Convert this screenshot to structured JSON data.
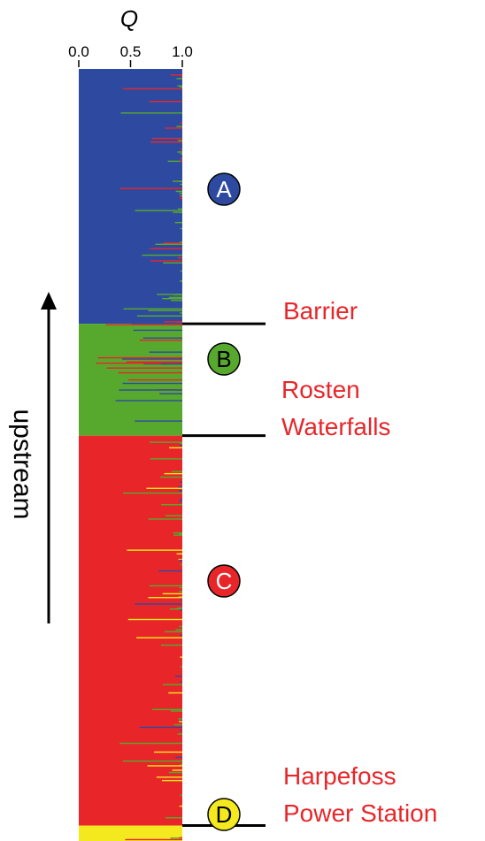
{
  "chart_data": {
    "type": "bar",
    "orientation": "horizontal-stacked",
    "x_axis_title": "Q",
    "ticks": [
      "0.0",
      "0.5",
      "1.0"
    ],
    "tick_values": [
      0.0,
      0.5,
      1.0
    ],
    "xlim": [
      0,
      1
    ],
    "direction_label": "upstream",
    "colors": {
      "A": "#2e4aa0",
      "B": "#57a92d",
      "C": "#e8262a",
      "D": "#f4e91e"
    },
    "clusters": [
      {
        "label": "A",
        "color": "#2e4aa0",
        "share": 0.33
      },
      {
        "label": "B",
        "color": "#57a92d",
        "share": 0.145
      },
      {
        "label": "C",
        "color": "#e8262a",
        "share": 0.505
      },
      {
        "label": "D",
        "color": "#f4e91e",
        "share": 0.064
      }
    ],
    "boundaries": [
      {
        "label": "Barrier",
        "lines": [
          "Barrier"
        ],
        "color": "#e8262a"
      },
      {
        "label": "Rosten Waterfalls",
        "lines": [
          "Rosten",
          "Waterfalls"
        ],
        "color": "#e8262a"
      },
      {
        "label": "Harpefoss Power Station",
        "lines": [
          "Harpefoss",
          "Power Station"
        ],
        "color": "#e8262a"
      }
    ]
  }
}
